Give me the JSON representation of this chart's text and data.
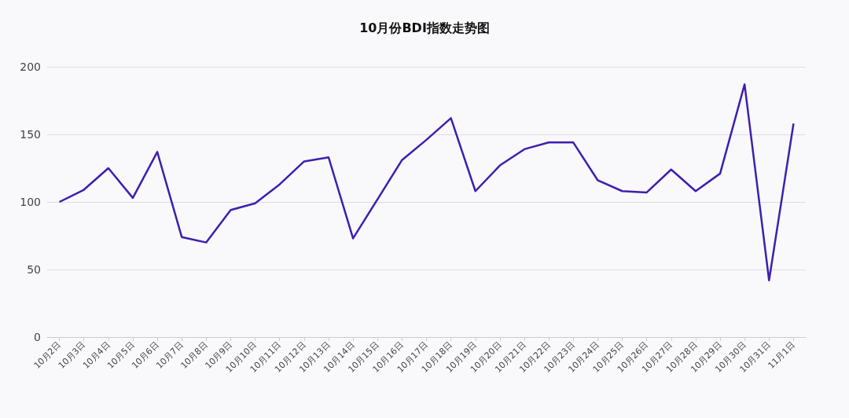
{
  "chart_data": {
    "type": "line",
    "title": "10月份BDI指数走势图",
    "categories": [
      "10月2日",
      "10月3日",
      "10月4日",
      "10月5日",
      "10月6日",
      "10月7日",
      "10月8日",
      "10月9日",
      "10月10日",
      "10月11日",
      "10月12日",
      "10月13日",
      "10月14日",
      "10月15日",
      "10月16日",
      "10月17日",
      "10月18日",
      "10月19日",
      "10月20日",
      "10月21日",
      "10月22日",
      "10月23日",
      "10月24日",
      "10月25日",
      "10月26日",
      "10月27日",
      "10月28日",
      "10月29日",
      "10月30日",
      "10月31日",
      "11月1日"
    ],
    "series": [
      {
        "color": "#3d1fb0",
        "values": [
          100,
          109,
          125,
          103,
          137,
          74,
          70,
          94,
          99,
          113,
          130,
          133,
          73,
          102,
          131,
          146,
          162,
          108,
          127,
          139,
          144,
          144,
          116,
          108,
          107,
          124,
          108,
          121,
          187,
          42,
          158
        ]
      }
    ],
    "ylim": [
      0,
      200
    ],
    "yticks": [
      0,
      50,
      100,
      150,
      200
    ],
    "grid": "y",
    "marker": "none",
    "line_style": "solid"
  }
}
